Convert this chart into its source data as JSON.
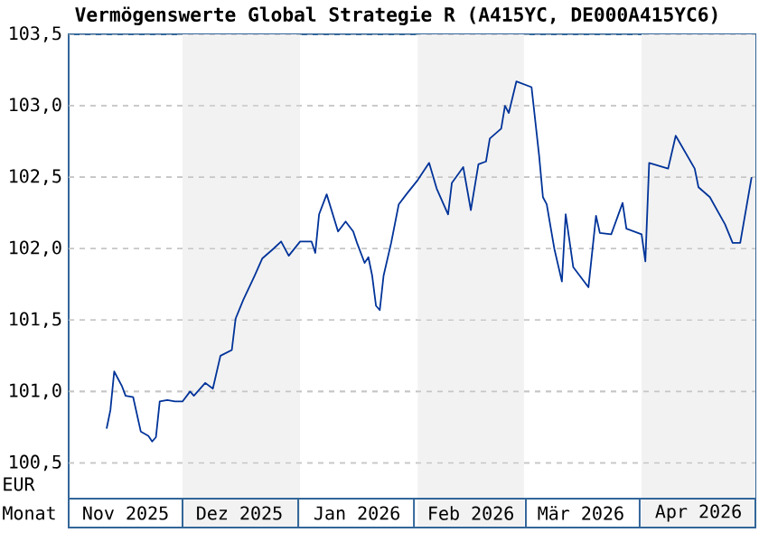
{
  "chart_data": {
    "type": "line",
    "title": "Vermögenswerte Global Strategie R (A415YC, DE000A415YC6)",
    "xlabel": "Monat",
    "ylabel": "EUR",
    "xlim": [
      "2025-11-01",
      "2026-05-01"
    ],
    "ylim": [
      100.25,
      103.5
    ],
    "xticks": [
      {
        "value": "2025-11-16",
        "label": "Nov 2025"
      },
      {
        "value": "2025-12-16",
        "label": "Dez 2025"
      },
      {
        "value": "2026-01-16",
        "label": "Jan 2026"
      },
      {
        "value": "2026-02-15",
        "label": "Feb 2026"
      },
      {
        "value": "2026-03-16",
        "label": "Mär 2026"
      },
      {
        "value": "2026-04-16",
        "label": "Apr 2026"
      }
    ],
    "yticks": [
      {
        "value": 100.5,
        "label": "100,5"
      },
      {
        "value": 101.0,
        "label": "101,0"
      },
      {
        "value": 101.5,
        "label": "101,5"
      },
      {
        "value": 102.0,
        "label": "102,0"
      },
      {
        "value": 102.5,
        "label": "102,5"
      },
      {
        "value": 103.0,
        "label": "103,0"
      },
      {
        "value": 103.5,
        "label": "103,5"
      }
    ],
    "grid": "y",
    "marker": "none",
    "line_style": "solid",
    "bands": [
      {
        "axis": "x",
        "from": "2025-12-01",
        "to": "2026-01-01",
        "color": "#f2f2f2"
      },
      {
        "axis": "x",
        "from": "2026-02-01",
        "to": "2026-03-01",
        "color": "#f2f2f2"
      },
      {
        "axis": "x",
        "from": "2026-04-01",
        "to": "2026-05-01",
        "color": "#f2f2f2"
      }
    ],
    "series": [
      {
        "color": "#003399",
        "x": [
          "2025-11-11",
          "2025-11-12",
          "2025-11-13",
          "2025-11-15",
          "2025-11-16",
          "2025-11-18",
          "2025-11-20",
          "2025-11-22",
          "2025-11-23",
          "2025-11-24",
          "2025-11-25",
          "2025-11-27",
          "2025-11-29",
          "2025-12-01",
          "2025-12-03",
          "2025-12-04",
          "2025-12-07",
          "2025-12-09",
          "2025-12-11",
          "2025-12-14",
          "2025-12-15",
          "2025-12-17",
          "2025-12-20",
          "2025-12-22",
          "2025-12-25",
          "2025-12-27",
          "2025-12-29",
          "2026-01-01",
          "2026-01-04",
          "2026-01-05",
          "2026-01-06",
          "2026-01-08",
          "2026-01-11",
          "2026-01-13",
          "2026-01-15",
          "2026-01-16",
          "2026-01-18",
          "2026-01-19",
          "2026-01-20",
          "2026-01-21",
          "2026-01-22",
          "2026-01-23",
          "2026-01-25",
          "2026-01-27",
          "2026-01-29",
          "2026-02-01",
          "2026-02-04",
          "2026-02-06",
          "2026-02-09",
          "2026-02-10",
          "2026-02-13",
          "2026-02-15",
          "2026-02-17",
          "2026-02-19",
          "2026-02-20",
          "2026-02-23",
          "2026-02-24",
          "2026-02-25",
          "2026-02-27",
          "2026-03-03",
          "2026-03-05",
          "2026-03-06",
          "2026-03-07",
          "2026-03-09",
          "2026-03-11",
          "2026-03-12",
          "2026-03-14",
          "2026-03-18",
          "2026-03-20",
          "2026-03-21",
          "2026-03-24",
          "2026-03-27",
          "2026-03-28",
          "2026-04-01",
          "2026-04-02",
          "2026-04-03",
          "2026-04-08",
          "2026-04-10",
          "2026-04-15",
          "2026-04-16",
          "2026-04-19",
          "2026-04-23",
          "2026-04-25",
          "2026-04-27",
          "2026-04-30"
        ],
        "values": [
          100.74,
          100.87,
          101.14,
          101.04,
          100.97,
          100.96,
          100.72,
          100.69,
          100.65,
          100.68,
          100.93,
          100.94,
          100.93,
          100.93,
          101.0,
          100.97,
          101.06,
          101.02,
          101.25,
          101.29,
          101.51,
          101.64,
          101.81,
          101.93,
          102.0,
          102.05,
          101.95,
          102.05,
          102.05,
          101.97,
          102.24,
          102.38,
          102.12,
          102.19,
          102.12,
          102.04,
          101.9,
          101.94,
          101.81,
          101.6,
          101.57,
          101.81,
          102.04,
          102.31,
          102.38,
          102.48,
          102.6,
          102.42,
          102.24,
          102.46,
          102.57,
          102.27,
          102.59,
          102.61,
          102.77,
          102.84,
          103.0,
          102.95,
          103.17,
          103.13,
          102.65,
          102.36,
          102.31,
          102.0,
          101.77,
          102.24,
          101.87,
          101.73,
          102.23,
          102.11,
          102.1,
          102.32,
          102.14,
          102.1,
          101.91,
          102.6,
          102.56,
          102.79,
          102.56,
          102.43,
          102.36,
          102.17,
          102.04,
          102.04,
          102.5
        ]
      }
    ]
  }
}
